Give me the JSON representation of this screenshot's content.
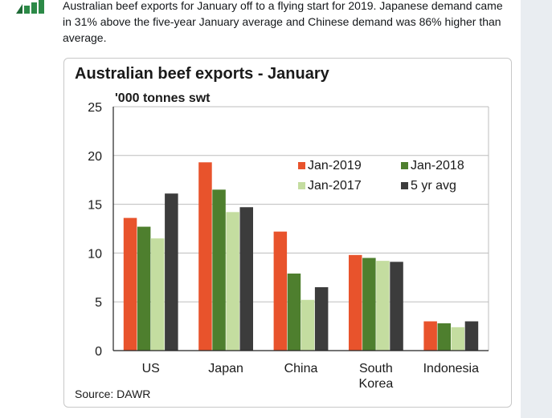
{
  "tweet": {
    "text": "Australian beef exports for January off to a flying start for 2019. Japanese demand came in 31% above the five-year January average and Chinese demand was 86% higher than average."
  },
  "chart_data": {
    "type": "bar",
    "title": "Australian beef exports - January",
    "ylabel": "'000 tonnes swt",
    "xlabel": "",
    "ylim": [
      0,
      25
    ],
    "yticks": [
      0,
      5,
      10,
      15,
      20,
      25
    ],
    "categories": [
      "US",
      "Japan",
      "China",
      "South Korea",
      "Indonesia"
    ],
    "category_lines": [
      [
        "US"
      ],
      [
        "Japan"
      ],
      [
        "China"
      ],
      [
        "South",
        "Korea"
      ],
      [
        "Indonesia"
      ]
    ],
    "series": [
      {
        "name": "Jan-2019",
        "color": "#e8532c",
        "values": [
          13.6,
          19.3,
          12.2,
          9.8,
          3.0
        ]
      },
      {
        "name": "Jan-2018",
        "color": "#4e7f2e",
        "values": [
          12.7,
          16.5,
          7.9,
          9.5,
          2.8
        ]
      },
      {
        "name": "Jan-2017",
        "color": "#c4dda0",
        "values": [
          11.5,
          14.2,
          5.2,
          9.2,
          2.4
        ]
      },
      {
        "name": "5 yr avg",
        "color": "#3c3c3c",
        "values": [
          16.1,
          14.7,
          6.5,
          9.1,
          3.0
        ]
      }
    ],
    "grid": true,
    "legend_position": "top-right",
    "source": "Source: DAWR"
  }
}
